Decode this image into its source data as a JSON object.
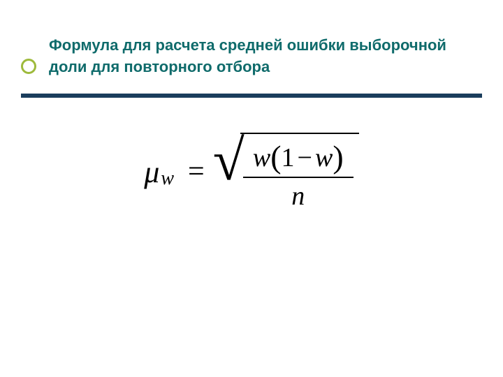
{
  "slide": {
    "background_color": "#ffffff",
    "title": {
      "text": "Формула для расчета средней ошибки выборочной доли для повторного отбора",
      "color": "#0f6b6b",
      "fontsize": 22,
      "font_weight": "bold"
    },
    "bullet": {
      "border_color": "#9eba3c",
      "size": 22
    },
    "divider": {
      "color": "#1a3d5c",
      "height": 6
    },
    "formula": {
      "type": "math-expression",
      "lhs_symbol": "μ",
      "lhs_subscript": "w",
      "equals": "=",
      "rhs": {
        "operator": "sqrt",
        "fraction": {
          "numerator": {
            "var1": "w",
            "paren_open": "(",
            "const": "1",
            "op": "−",
            "var2": "w",
            "paren_close": ")"
          },
          "denominator": "n"
        }
      },
      "color": "#000000",
      "font_family": "Times New Roman",
      "base_fontsize": 42
    }
  }
}
